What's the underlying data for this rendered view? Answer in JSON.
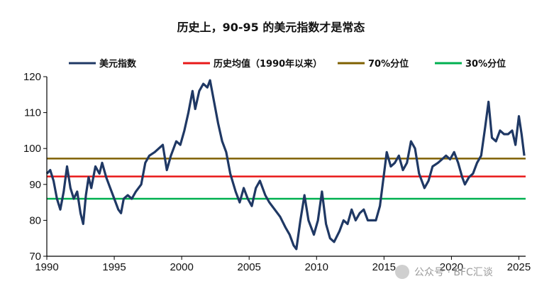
{
  "chart_data": {
    "type": "line",
    "title": "历史上，90-95 的美元指数才是常态",
    "xlabel": "",
    "ylabel": "",
    "xlim": [
      1990,
      2025.5
    ],
    "ylim": [
      70,
      120
    ],
    "x_ticks": [
      1990,
      1995,
      2000,
      2005,
      2010,
      2015,
      2020,
      2025
    ],
    "y_ticks": [
      70,
      80,
      90,
      100,
      110,
      120
    ],
    "grid": false,
    "legend_position": "top",
    "series": [
      {
        "name": "美元指数",
        "type": "line",
        "color": "#1f3864",
        "points": [
          [
            1990.0,
            93
          ],
          [
            1990.25,
            94
          ],
          [
            1990.5,
            91
          ],
          [
            1990.75,
            86
          ],
          [
            1991.0,
            83
          ],
          [
            1991.25,
            88
          ],
          [
            1991.5,
            95
          ],
          [
            1991.75,
            89
          ],
          [
            1992.0,
            86
          ],
          [
            1992.25,
            88
          ],
          [
            1992.5,
            82
          ],
          [
            1992.7,
            79
          ],
          [
            1992.9,
            87
          ],
          [
            1993.1,
            92
          ],
          [
            1993.3,
            89
          ],
          [
            1993.6,
            95
          ],
          [
            1993.9,
            93
          ],
          [
            1994.1,
            96
          ],
          [
            1994.4,
            92
          ],
          [
            1994.7,
            89
          ],
          [
            1995.0,
            86
          ],
          [
            1995.3,
            83
          ],
          [
            1995.5,
            82
          ],
          [
            1995.7,
            86
          ],
          [
            1996.0,
            87
          ],
          [
            1996.3,
            86
          ],
          [
            1996.6,
            88
          ],
          [
            1997.0,
            90
          ],
          [
            1997.3,
            96
          ],
          [
            1997.6,
            98
          ],
          [
            1998.0,
            99
          ],
          [
            1998.3,
            100
          ],
          [
            1998.6,
            101
          ],
          [
            1998.9,
            94
          ],
          [
            1999.2,
            98
          ],
          [
            1999.6,
            102
          ],
          [
            1999.9,
            101
          ],
          [
            2000.2,
            105
          ],
          [
            2000.5,
            110
          ],
          [
            2000.8,
            116
          ],
          [
            2001.0,
            111
          ],
          [
            2001.3,
            116
          ],
          [
            2001.6,
            118
          ],
          [
            2001.9,
            117
          ],
          [
            2002.1,
            119
          ],
          [
            2002.4,
            113
          ],
          [
            2002.7,
            107
          ],
          [
            2003.0,
            102
          ],
          [
            2003.3,
            99
          ],
          [
            2003.6,
            93
          ],
          [
            2004.0,
            88
          ],
          [
            2004.3,
            85
          ],
          [
            2004.6,
            89
          ],
          [
            2004.9,
            86
          ],
          [
            2005.2,
            84
          ],
          [
            2005.5,
            89
          ],
          [
            2005.8,
            91
          ],
          [
            2006.2,
            87
          ],
          [
            2006.5,
            85
          ],
          [
            2006.9,
            83
          ],
          [
            2007.3,
            81
          ],
          [
            2007.7,
            78
          ],
          [
            2008.0,
            76
          ],
          [
            2008.3,
            73
          ],
          [
            2008.5,
            72
          ],
          [
            2008.8,
            80
          ],
          [
            2009.1,
            87
          ],
          [
            2009.4,
            80
          ],
          [
            2009.8,
            76
          ],
          [
            2010.1,
            80
          ],
          [
            2010.4,
            88
          ],
          [
            2010.7,
            79
          ],
          [
            2011.0,
            75
          ],
          [
            2011.3,
            74
          ],
          [
            2011.7,
            77
          ],
          [
            2012.0,
            80
          ],
          [
            2012.3,
            79
          ],
          [
            2012.6,
            83
          ],
          [
            2012.9,
            80
          ],
          [
            2013.2,
            82
          ],
          [
            2013.5,
            83
          ],
          [
            2013.8,
            80
          ],
          [
            2014.1,
            80
          ],
          [
            2014.4,
            80
          ],
          [
            2014.7,
            84
          ],
          [
            2015.0,
            93
          ],
          [
            2015.2,
            99
          ],
          [
            2015.5,
            95
          ],
          [
            2015.8,
            96
          ],
          [
            2016.1,
            98
          ],
          [
            2016.4,
            94
          ],
          [
            2016.7,
            96
          ],
          [
            2017.0,
            102
          ],
          [
            2017.3,
            100
          ],
          [
            2017.6,
            93
          ],
          [
            2018.0,
            89
          ],
          [
            2018.3,
            91
          ],
          [
            2018.6,
            95
          ],
          [
            2019.0,
            96
          ],
          [
            2019.3,
            97
          ],
          [
            2019.6,
            98
          ],
          [
            2019.9,
            97
          ],
          [
            2020.2,
            99
          ],
          [
            2020.5,
            96
          ],
          [
            2020.8,
            92
          ],
          [
            2021.0,
            90
          ],
          [
            2021.3,
            92
          ],
          [
            2021.6,
            93
          ],
          [
            2021.9,
            96
          ],
          [
            2022.2,
            98
          ],
          [
            2022.5,
            106
          ],
          [
            2022.75,
            113
          ],
          [
            2023.0,
            103
          ],
          [
            2023.3,
            102
          ],
          [
            2023.6,
            105
          ],
          [
            2023.9,
            104
          ],
          [
            2024.2,
            104
          ],
          [
            2024.5,
            105
          ],
          [
            2024.75,
            101
          ],
          [
            2025.0,
            109
          ],
          [
            2025.2,
            104
          ],
          [
            2025.4,
            98
          ]
        ]
      },
      {
        "name": "历史均值（1990年以来）",
        "type": "hline",
        "color": "#e81919",
        "value": 92.2
      },
      {
        "name": "70%分位",
        "type": "hline",
        "color": "#7f6000",
        "value": 97.2
      },
      {
        "name": "30%分位",
        "type": "hline",
        "color": "#00b050",
        "value": 86.0
      }
    ]
  },
  "watermark": "公众号 · BFC汇谈"
}
